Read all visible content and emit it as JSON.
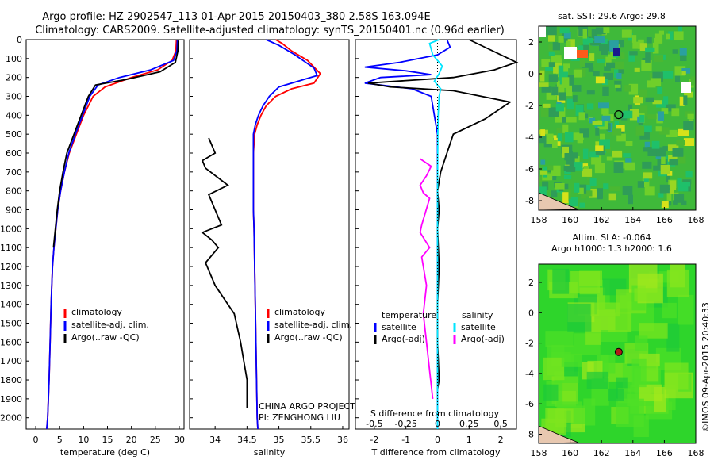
{
  "header": {
    "line1": "Argo profile: HZ 2902547_113 01-Apr-2015 20150403_380 2.58S 163.094E",
    "line2": "Climatology: CARS2009. Satellite-adjusted climatology: synTS_20150401.nc (0.96d earlier)"
  },
  "side_stamp": "©IMOS 09-Apr-2015 20:40:33",
  "colors": {
    "climatology": "#ff0000",
    "satellite": "#0000ff",
    "argo": "#000000",
    "salinity_satellite": "#00e5ff",
    "salinity_argo": "#ff00ff"
  },
  "chart_data": [
    {
      "id": "temperature",
      "type": "line",
      "xlabel": "temperature (deg C)",
      "ylabel": "",
      "xlim": [
        -2,
        31
      ],
      "ylim": [
        2060,
        0
      ],
      "xticks": [
        0,
        5,
        10,
        15,
        20,
        25,
        30
      ],
      "xtick_labels": [
        "0",
        "5",
        "10",
        "15",
        "20",
        "25",
        "30"
      ],
      "yticks": [
        0,
        100,
        200,
        300,
        400,
        500,
        600,
        700,
        800,
        900,
        1000,
        1100,
        1200,
        1300,
        1400,
        1500,
        1600,
        1700,
        1800,
        1900,
        2000
      ],
      "ytick_labels": [
        "0",
        "100",
        "200",
        "300",
        "400",
        "500",
        "600",
        "700",
        "800",
        "900",
        "1000",
        "1100",
        "1200",
        "1300",
        "1400",
        "1500",
        "1600",
        "1700",
        "1800",
        "1900",
        "2000"
      ],
      "legend": [
        "climatology",
        "satellite-adj. clim.",
        "Argo(..raw -QC)"
      ],
      "legend_position": "lower-middle",
      "series": [
        {
          "name": "climatology",
          "color": "#ff0000",
          "x": [
            29.4,
            29.3,
            28.5,
            25.5,
            20.0,
            14.5,
            12.0,
            10.0,
            8.5,
            7.0,
            6.0,
            5.2,
            4.6,
            4.2,
            3.8,
            3.5,
            3.2,
            3.0,
            2.8,
            2.5,
            2.3
          ],
          "y": [
            0,
            60,
            110,
            160,
            200,
            250,
            300,
            400,
            500,
            600,
            700,
            800,
            900,
            1000,
            1100,
            1200,
            1400,
            1600,
            1800,
            2000,
            2060
          ]
        },
        {
          "name": "satellite-adj. clim.",
          "color": "#0000ff",
          "x": [
            29.6,
            29.5,
            28.8,
            24.0,
            17.5,
            13.0,
            11.3,
            9.8,
            8.3,
            6.9,
            6.0,
            5.2,
            4.6,
            4.2,
            3.8,
            3.5,
            3.2,
            3.0,
            2.8,
            2.5,
            2.3
          ],
          "y": [
            0,
            60,
            110,
            160,
            200,
            240,
            300,
            400,
            500,
            600,
            700,
            800,
            900,
            1000,
            1100,
            1200,
            1400,
            1600,
            1800,
            2000,
            2060
          ]
        },
        {
          "name": "Argo(..raw -QC)",
          "color": "#000000",
          "x": [
            29.8,
            29.7,
            29.2,
            26.0,
            19.0,
            12.5,
            11.0,
            9.5,
            8.0,
            6.5,
            5.7,
            5.0,
            4.5,
            4.1,
            3.7
          ],
          "y": [
            5,
            60,
            120,
            170,
            210,
            240,
            300,
            400,
            500,
            600,
            700,
            800,
            900,
            1000,
            1100
          ]
        }
      ]
    },
    {
      "id": "salinity",
      "type": "line",
      "xlabel": "salinity",
      "ylabel": "",
      "xlim": [
        33.6,
        36.1
      ],
      "ylim": [
        2060,
        0
      ],
      "xticks": [
        34,
        34.5,
        35,
        35.5,
        36
      ],
      "xtick_labels": [
        "34",
        "34.5",
        "35",
        "35.5",
        "36"
      ],
      "legend": [
        "climatology",
        "satellite-adj. clim.",
        "Argo(..raw -QC)"
      ],
      "legend_position": "lower-middle",
      "annotations": [
        "CHINA ARGO PROJECT",
        "PI: ZENGHONG LIU"
      ],
      "series": [
        {
          "name": "climatology",
          "color": "#ff0000",
          "x": [
            34.95,
            35.05,
            35.2,
            35.45,
            35.65,
            35.55,
            35.2,
            34.95,
            34.8,
            34.72,
            34.66,
            34.62,
            34.6,
            34.6,
            34.6,
            34.6,
            34.61,
            34.62,
            34.63,
            34.64,
            34.65,
            34.66,
            34.67
          ],
          "y": [
            0,
            20,
            60,
            110,
            180,
            230,
            260,
            300,
            350,
            400,
            450,
            500,
            600,
            700,
            800,
            900,
            1000,
            1200,
            1400,
            1600,
            1800,
            2000,
            2060
          ]
        },
        {
          "name": "satellite-adj. clim.",
          "color": "#0000ff",
          "x": [
            34.8,
            35.0,
            35.25,
            35.55,
            35.6,
            35.35,
            35.0,
            34.85,
            34.75,
            34.68,
            34.63,
            34.6,
            34.6,
            34.6,
            34.6,
            34.6,
            34.61,
            34.62,
            34.63,
            34.64,
            34.65,
            34.66,
            34.67
          ],
          "y": [
            0,
            30,
            80,
            150,
            190,
            215,
            250,
            300,
            350,
            400,
            450,
            500,
            600,
            700,
            800,
            900,
            1000,
            1200,
            1400,
            1600,
            1800,
            2000,
            2060
          ]
        },
        {
          "name": "Argo(..raw -QC)",
          "color": "#000000",
          "x": [
            33.9,
            34.0,
            33.8,
            33.85,
            34.2,
            33.9,
            34.1,
            33.8,
            33.95,
            34.05,
            33.85,
            34.0,
            34.3,
            34.4,
            34.45,
            34.5,
            34.5,
            34.5
          ],
          "y": [
            520,
            600,
            640,
            680,
            770,
            820,
            980,
            1020,
            1060,
            1100,
            1180,
            1300,
            1450,
            1600,
            1700,
            1800,
            1900,
            1950
          ]
        }
      ]
    },
    {
      "id": "difference",
      "type": "line",
      "xlabel": "T difference from climatology",
      "xlabel_top": "S difference from climatology",
      "xlim": [
        -2.6,
        2.5
      ],
      "ylim": [
        2060,
        0
      ],
      "xticks": [
        -2,
        -1,
        0,
        1,
        2
      ],
      "xtick_labels": [
        "-2",
        "-1",
        "0",
        "1",
        "2"
      ],
      "xticks_top_values": [
        -0.5,
        -0.25,
        0,
        0.25,
        0.5
      ],
      "xticks_top": [
        "-0.5",
        "-0.25",
        "0",
        "0.25",
        "0.5"
      ],
      "legend_temperature_title": "temperature",
      "legend_salinity_title": "salinity",
      "legend": [
        "satellite",
        "Argo(-adj)",
        "satellite",
        "Argo(-adj)"
      ],
      "legend_position": "lower-middle",
      "series": [
        {
          "name": "satellite",
          "color": "#0000ff",
          "x": [
            0.3,
            0.4,
            0.0,
            -1.2,
            -2.3,
            -1.0,
            -0.2,
            -1.8,
            -2.3,
            -0.8,
            -0.2,
            0.0,
            0.0,
            0.0,
            0.0
          ],
          "y": [
            0,
            40,
            80,
            120,
            145,
            165,
            185,
            200,
            230,
            260,
            300,
            500,
            1000,
            1500,
            2060
          ]
        },
        {
          "name": "Argo(-adj)",
          "color": "#000000",
          "x": [
            1.0,
            1.5,
            2.5,
            1.8,
            0.5,
            -2.2,
            -1.5,
            0.5,
            2.3,
            1.5,
            0.5,
            0.3,
            0.1,
            0.0,
            0.05,
            0.0,
            0.05,
            0.0,
            0.0,
            0.05,
            0.0
          ],
          "y": [
            0,
            40,
            120,
            160,
            200,
            230,
            250,
            270,
            330,
            420,
            500,
            600,
            700,
            800,
            900,
            1000,
            1200,
            1400,
            1600,
            1800,
            1850
          ]
        },
        {
          "name": "satellite",
          "color": "#00e5ff",
          "x": [
            0.05,
            -0.25,
            -0.15,
            0.0,
            0.15,
            0.05,
            -0.1,
            0.1,
            0.05,
            0.02,
            0.01,
            0.0,
            0.0,
            0.0,
            0.0
          ],
          "y": [
            0,
            20,
            80,
            110,
            140,
            180,
            220,
            260,
            300,
            400,
            500,
            800,
            1200,
            1600,
            2060
          ]
        },
        {
          "name": "Argo(-adj)",
          "color": "#ff00ff",
          "x": [
            -0.55,
            -0.2,
            -0.35,
            -0.55,
            -0.45,
            -0.25,
            -0.5,
            -0.55,
            -0.25,
            -0.5,
            -0.35,
            -0.45,
            -0.35,
            -0.25,
            -0.15
          ],
          "y": [
            630,
            670,
            720,
            770,
            810,
            840,
            980,
            1020,
            1100,
            1150,
            1300,
            1450,
            1600,
            1750,
            1900
          ]
        }
      ]
    },
    {
      "id": "sst_map",
      "type": "heatmap",
      "title": "sat. SST: 29.6 Argo: 29.8",
      "xlim": [
        158,
        168
      ],
      "ylim": [
        -8.6,
        3
      ],
      "xticks": [
        158,
        160,
        162,
        164,
        166,
        168
      ],
      "xtick_labels": [
        "158",
        "160",
        "162",
        "164",
        "166",
        "168"
      ],
      "yticks": [
        2,
        0,
        -2,
        -4,
        -6,
        -8
      ],
      "ytick_labels": [
        "2",
        "0",
        "-2",
        "-4",
        "-6",
        "-8"
      ],
      "profile_position": {
        "lon": 163.094,
        "lat": -2.58
      }
    },
    {
      "id": "sla_map",
      "type": "heatmap",
      "title": "Altim. SLA: -0.064",
      "subtitle": "Argo h1000: 1.3 h2000: 1.6",
      "xlim": [
        158,
        168
      ],
      "ylim": [
        -8.6,
        3.2
      ],
      "xticks": [
        158,
        160,
        162,
        164,
        166,
        168
      ],
      "xtick_labels": [
        "158",
        "160",
        "162",
        "164",
        "166",
        "168"
      ],
      "yticks": [
        2,
        0,
        -2,
        -4,
        -6,
        -8
      ],
      "ytick_labels": [
        "2",
        "0",
        "-2",
        "-4",
        "-6",
        "-8"
      ],
      "profile_position": {
        "lon": 163.094,
        "lat": -2.58
      }
    }
  ]
}
